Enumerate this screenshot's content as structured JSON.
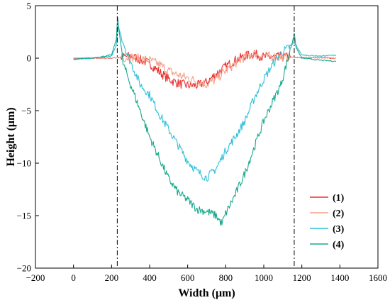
{
  "chart_data": {
    "type": "line",
    "xlabel": "Width (μm)",
    "ylabel": "Height (μm)",
    "xlim": [
      -200,
      1600
    ],
    "ylim": [
      -20,
      5
    ],
    "xticks": [
      -200,
      0,
      200,
      400,
      600,
      800,
      1000,
      1200,
      1400,
      1600
    ],
    "yticks": [
      5,
      0,
      -5,
      -10,
      -15,
      -20
    ],
    "xtick_labels": [
      "−200",
      "0",
      "200",
      "400",
      "600",
      "800",
      "1000",
      "1200",
      "1400",
      "1600"
    ],
    "ytick_labels": [
      "5",
      "0",
      "−5",
      "−10",
      "−15",
      "−20"
    ],
    "reference_lines_x": [
      230,
      1160
    ],
    "grid": false,
    "legend_position": "lower-right",
    "series": [
      {
        "name": "(1)",
        "color": "#e8312f",
        "x": [
          0,
          100,
          200,
          300,
          400,
          450,
          500,
          550,
          600,
          650,
          700,
          750,
          800,
          850,
          900,
          950,
          1000,
          1100,
          1200,
          1300,
          1380
        ],
        "y": [
          0,
          0,
          0,
          0.2,
          -0.5,
          -1.3,
          -2.0,
          -2.4,
          -2.6,
          -2.6,
          -2.3,
          -1.5,
          -0.8,
          -0.2,
          0.2,
          0.4,
          0.1,
          0.1,
          0.05,
          0.05,
          0
        ]
      },
      {
        "name": "(2)",
        "color": "#f4a08a",
        "x": [
          0,
          100,
          200,
          300,
          400,
          450,
          500,
          550,
          600,
          650,
          700,
          750,
          800,
          850,
          900,
          950,
          1000,
          1100,
          1200,
          1300,
          1380
        ],
        "y": [
          0,
          0,
          0,
          0.1,
          -0.2,
          -0.6,
          -1.2,
          -1.6,
          -1.9,
          -2.2,
          -2.5,
          -2.0,
          -1.2,
          -0.5,
          0.1,
          0.5,
          0.2,
          0.1,
          0.05,
          0.05,
          0
        ]
      },
      {
        "name": "(3)",
        "color": "#2fc0d8",
        "x": [
          0,
          100,
          200,
          225,
          235,
          280,
          350,
          400,
          450,
          500,
          550,
          600,
          650,
          700,
          750,
          800,
          850,
          900,
          950,
          1000,
          1050,
          1090,
          1130,
          1160,
          1200,
          1300,
          1380
        ],
        "y": [
          -0.1,
          0,
          0.2,
          1.2,
          3.0,
          0.5,
          -2.5,
          -3.5,
          -5.3,
          -6.8,
          -8.3,
          -9.8,
          -10.8,
          -11.4,
          -10.5,
          -8.8,
          -7.5,
          -6.0,
          -3.8,
          -2.0,
          -0.5,
          0.5,
          1.0,
          1.5,
          0.3,
          0.2,
          0.3
        ]
      },
      {
        "name": "(4)",
        "color": "#1aa88c",
        "x": [
          0,
          100,
          200,
          225,
          232,
          260,
          300,
          350,
          400,
          450,
          500,
          550,
          600,
          650,
          700,
          750,
          780,
          800,
          850,
          900,
          950,
          1000,
          1050,
          1090,
          1120,
          1150,
          1160,
          1170,
          1200,
          1300,
          1380
        ],
        "y": [
          -0.1,
          0,
          0.3,
          1.8,
          3.9,
          -0.5,
          -2.5,
          -5.0,
          -7.5,
          -9.5,
          -11.5,
          -12.8,
          -13.5,
          -14.4,
          -14.6,
          -15.0,
          -15.8,
          -14.8,
          -13.0,
          -11.0,
          -8.5,
          -6.0,
          -4.0,
          -2.5,
          -0.5,
          1.5,
          2.4,
          1.0,
          0.0,
          -0.2,
          -0.3
        ]
      }
    ]
  }
}
